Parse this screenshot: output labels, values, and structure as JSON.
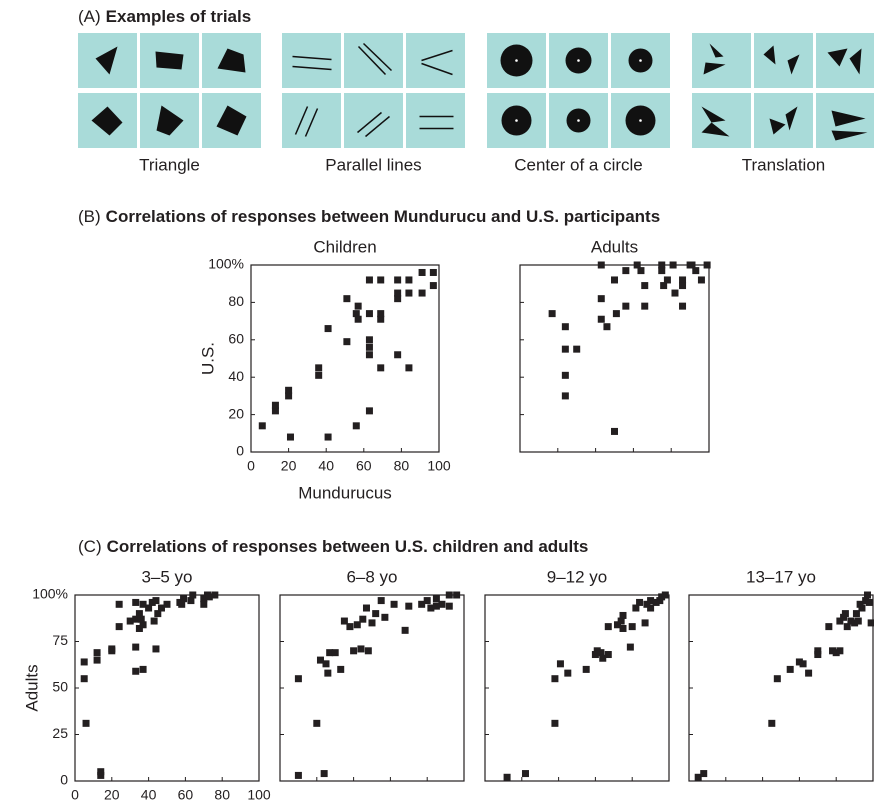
{
  "panel_a": {
    "label": "(A)",
    "title": "Examples of trials",
    "examples": [
      "Triangle",
      "Parallel lines",
      "Center of a circle",
      "Translation"
    ]
  },
  "panel_b": {
    "label": "(B)",
    "title": "Correlations of responses between Mundurucu and U.S. participants"
  },
  "panel_c": {
    "label": "(C)",
    "title": "Correlations of responses between U.S. children and adults"
  },
  "chart_data": [
    {
      "type": "scatter",
      "title": "Children",
      "x_label": "Mundurucus",
      "y_label": "U.S.",
      "tick_labels": true,
      "color": "#231f20",
      "xlim": [
        0,
        100
      ],
      "ylim": [
        0,
        100
      ],
      "xticks": [
        0,
        20,
        40,
        60,
        80,
        100
      ],
      "yticks": [
        0,
        20,
        40,
        60,
        80,
        {
          "value": 100,
          "label": "100%"
        }
      ],
      "x": [
        6,
        13,
        13,
        20,
        20,
        21,
        41,
        36,
        36,
        41,
        51,
        51,
        56,
        57,
        57,
        56,
        63,
        63,
        63,
        63,
        63,
        63,
        69,
        69,
        69,
        69,
        78,
        78,
        78,
        78,
        84,
        84,
        84,
        91,
        91,
        97,
        97
      ],
      "y": [
        14,
        22,
        25,
        30,
        33,
        8,
        8,
        41,
        45,
        66,
        59,
        82,
        74,
        71,
        78,
        14,
        22,
        52,
        56,
        60,
        74,
        92,
        45,
        71,
        74,
        92,
        52,
        82,
        85,
        92,
        45,
        85,
        92,
        85,
        96,
        89,
        96
      ]
    },
    {
      "type": "scatter",
      "title": "Adults",
      "tick_labels": false,
      "color": "#231f20",
      "xlim": [
        0,
        100
      ],
      "ylim": [
        0,
        100
      ],
      "xticks": [
        0,
        20,
        40,
        60,
        80,
        100
      ],
      "yticks": [
        0,
        20,
        40,
        60,
        80,
        {
          "value": 100,
          "label": "100%"
        }
      ],
      "x": [
        17,
        24,
        24,
        30,
        24,
        24,
        43,
        43,
        43,
        46,
        50,
        51,
        50,
        56,
        56,
        62,
        64,
        66,
        66,
        75,
        75,
        76,
        78,
        82,
        86,
        86,
        86,
        90,
        91,
        93,
        96,
        99,
        81
      ],
      "y": [
        74,
        67,
        55,
        55,
        41,
        30,
        100,
        82,
        71,
        67,
        92,
        74,
        11,
        97,
        78,
        100,
        97,
        89,
        78,
        100,
        97,
        89,
        92,
        85,
        92,
        89,
        78,
        100,
        100,
        97,
        92,
        100,
        100
      ]
    },
    {
      "type": "scatter",
      "title": "3–5 yo",
      "y_label": "Adults",
      "tick_labels": true,
      "color": "#231f20",
      "xlim": [
        0,
        100
      ],
      "ylim": [
        0,
        100
      ],
      "xticks": [
        0,
        20,
        40,
        60,
        80,
        100
      ],
      "yticks": [
        0,
        25,
        50,
        75,
        {
          "value": 100,
          "label": "100%"
        }
      ],
      "x": [
        6,
        5,
        5,
        12,
        12,
        14,
        14,
        20,
        20,
        24,
        24,
        30,
        33,
        33,
        33,
        35,
        35,
        37,
        37,
        37,
        40,
        42,
        43,
        44,
        44,
        45,
        47,
        50,
        57,
        59,
        63,
        64,
        70,
        70,
        72,
        73,
        76,
        36,
        33,
        58
      ],
      "y": [
        31,
        55,
        64,
        65,
        69,
        3,
        5,
        70,
        71,
        83,
        95,
        86,
        72,
        59,
        87,
        90,
        82,
        60,
        84,
        95,
        93,
        96,
        86,
        97,
        71,
        90,
        93,
        95,
        96,
        98,
        97,
        100,
        98,
        95,
        100,
        99,
        100,
        87,
        96,
        95
      ]
    },
    {
      "type": "scatter",
      "title": "6–8 yo",
      "tick_labels": false,
      "color": "#231f20",
      "xlim": [
        0,
        100
      ],
      "ylim": [
        0,
        100
      ],
      "xticks": [
        0,
        20,
        40,
        60,
        80,
        100
      ],
      "yticks": [
        0,
        25,
        50,
        75,
        {
          "value": 100,
          "label": "100%"
        }
      ],
      "x": [
        10,
        10,
        20,
        22,
        25,
        24,
        26,
        27,
        30,
        33,
        35,
        38,
        40,
        42,
        44,
        45,
        47,
        48,
        50,
        52,
        55,
        57,
        62,
        68,
        70,
        77,
        80,
        82,
        85,
        88,
        92,
        96,
        85,
        92
      ],
      "y": [
        55,
        3,
        31,
        65,
        63,
        4,
        58,
        69,
        69,
        60,
        86,
        83,
        70,
        84,
        71,
        87,
        93,
        70,
        85,
        90,
        97,
        88,
        95,
        81,
        94,
        95,
        97,
        93,
        98,
        95,
        100,
        100,
        94,
        94
      ]
    },
    {
      "type": "scatter",
      "title": "9–12 yo",
      "tick_labels": false,
      "color": "#231f20",
      "xlim": [
        0,
        100
      ],
      "ylim": [
        0,
        100
      ],
      "xticks": [
        0,
        20,
        40,
        60,
        80,
        100
      ],
      "yticks": [
        0,
        25,
        50,
        75,
        {
          "value": 100,
          "label": "100%"
        }
      ],
      "x": [
        12,
        22,
        38,
        38,
        41,
        45,
        55,
        60,
        61,
        63,
        64,
        67,
        67,
        72,
        74,
        75,
        75,
        79,
        80,
        82,
        84,
        87,
        88,
        90,
        90,
        93,
        95,
        96,
        98
      ],
      "y": [
        2,
        4,
        31,
        55,
        63,
        58,
        60,
        68,
        70,
        69,
        66,
        68,
        83,
        84,
        86,
        89,
        82,
        72,
        83,
        93,
        96,
        85,
        95,
        93,
        97,
        96,
        97,
        99,
        100
      ]
    },
    {
      "type": "scatter",
      "title": "13–17 yo",
      "tick_labels": false,
      "color": "#231f20",
      "xlim": [
        0,
        100
      ],
      "ylim": [
        0,
        100
      ],
      "xticks": [
        0,
        20,
        40,
        60,
        80,
        100
      ],
      "yticks": [
        0,
        25,
        50,
        75,
        {
          "value": 100,
          "label": "100%"
        }
      ],
      "x": [
        5,
        8,
        45,
        48,
        55,
        60,
        62,
        65,
        70,
        70,
        76,
        78,
        80,
        82,
        82,
        84,
        85,
        86,
        88,
        90,
        91,
        92,
        93,
        94,
        96,
        97,
        98,
        99
      ],
      "y": [
        2,
        4,
        31,
        55,
        60,
        64,
        63,
        58,
        70,
        68,
        83,
        70,
        69,
        70,
        86,
        88,
        90,
        83,
        86,
        85,
        90,
        86,
        95,
        93,
        97,
        100,
        96,
        85
      ]
    }
  ]
}
